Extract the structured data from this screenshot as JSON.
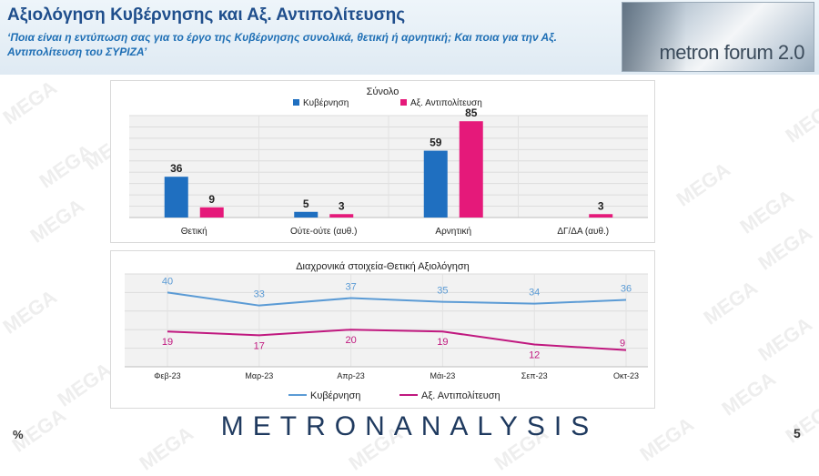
{
  "header": {
    "title": "Αξιολόγηση Κυβέρνησης και Αξ. Αντιπολίτευσης",
    "subtitle": "‘Ποια είναι η εντύπωση σας για το έργο της Κυβέρνησης συνολικά, θετική ή αρνητική; Και ποια για την Αξ. Αντιπολίτευση του ΣΥΡΙΖΑ’",
    "logo_text": "metron forum 2.0"
  },
  "watermark_text": "MEGA",
  "footer": {
    "brand": "METRONANALYSIS",
    "percent_sign": "%",
    "page_number": "5"
  },
  "colors": {
    "government": "#1f6fc0",
    "opposition": "#e5197a",
    "line_government": "#5b9bd5",
    "line_opposition": "#c0187f",
    "label_government": "#5b9bd5",
    "label_opposition": "#c0187f"
  },
  "chart_data": [
    {
      "type": "bar",
      "title": "Σύνολο",
      "categories": [
        "Θετική",
        "Ούτε-ούτε (αυθ.)",
        "Αρνητική",
        "ΔΓ/ΔΑ (αυθ.)"
      ],
      "series": [
        {
          "name": "Κυβέρνηση",
          "values": [
            36,
            5,
            59,
            null
          ]
        },
        {
          "name": "Αξ. Αντιπολίτευση",
          "values": [
            9,
            3,
            85,
            3
          ]
        }
      ],
      "ylim": [
        0,
        90
      ],
      "grid": true,
      "legend": "top"
    },
    {
      "type": "line",
      "title": "Διαχρονικά στοιχεία-Θετική Αξιολόγηση",
      "categories": [
        "Φεβ-23",
        "Μαρ-23",
        "Απρ-23",
        "Μάι-23",
        "Σεπ-23",
        "Οκτ-23"
      ],
      "series": [
        {
          "name": "Κυβέρνηση",
          "values": [
            40,
            33,
            37,
            35,
            34,
            36
          ]
        },
        {
          "name": "Αξ. Αντιπολίτευση",
          "values": [
            19,
            17,
            20,
            19,
            12,
            9
          ]
        }
      ],
      "ylim": [
        0,
        50
      ],
      "grid": true,
      "legend": "bottom"
    }
  ]
}
